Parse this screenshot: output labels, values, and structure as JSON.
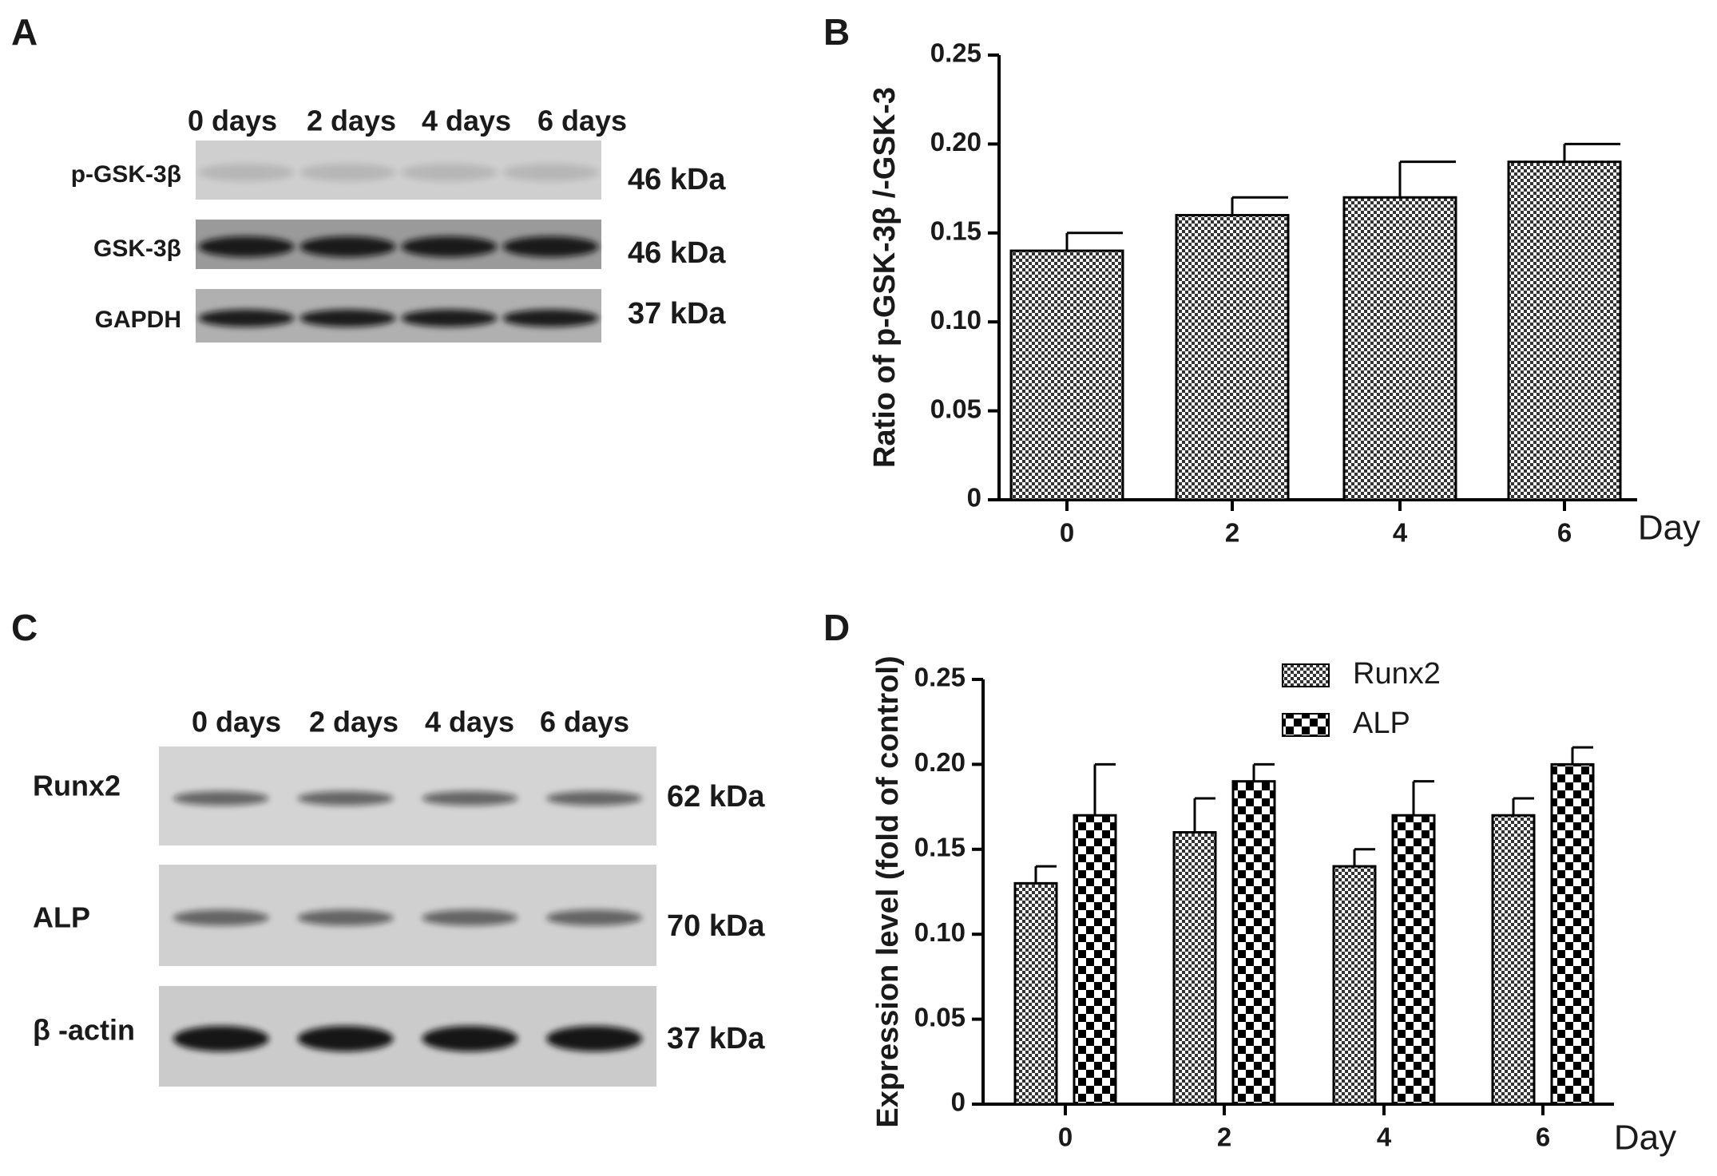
{
  "panel_labels": [
    "A",
    "B",
    "C",
    "D"
  ],
  "blots": [
    {
      "lanes": [
        "0 days",
        "2 days",
        "4 days",
        "6 days"
      ],
      "rows": [
        {
          "label": "p-GSK-3β",
          "size": "46 kDa"
        },
        {
          "label": "GSK-3β",
          "size": "46 kDa"
        },
        {
          "label": "GAPDH",
          "size": "37 kDa"
        }
      ]
    },
    {
      "lanes": [
        "0 days",
        "2 days",
        "4 days",
        "6 days"
      ],
      "rows": [
        {
          "label": "Runx2",
          "size": "62 kDa"
        },
        {
          "label": "ALP",
          "size": "70 kDa"
        },
        {
          "label": "β -actin",
          "size": "37 kDa"
        }
      ]
    }
  ],
  "chart_data": [
    {
      "type": "bar",
      "y_label": "Ratio of p-GSK-3β /-GSK-3",
      "x_label": "Day",
      "categories": [
        "0",
        "2",
        "4",
        "6"
      ],
      "series": [
        {
          "values": [
            0.14,
            0.16,
            0.17,
            0.19
          ],
          "errors": [
            0.01,
            0.01,
            0.02,
            0.01
          ],
          "pattern": "fine"
        }
      ],
      "ylim": [
        0,
        0.25
      ],
      "yticks": [
        0,
        0.05,
        {
          "value": 0.1,
          "label": "0.10"
        },
        0.15,
        {
          "value": 0.2,
          "label": "0.20"
        },
        0.25
      ]
    },
    {
      "type": "bar",
      "y_label": "Expression level (fold of control)",
      "x_label": "Day",
      "categories": [
        "0",
        "2",
        "4",
        "6"
      ],
      "series": [
        {
          "name": "Runx2",
          "values": [
            0.13,
            0.16,
            0.14,
            0.17
          ],
          "errors": [
            0.01,
            0.02,
            0.01,
            0.01
          ],
          "pattern": "fine"
        },
        {
          "name": "ALP",
          "values": [
            0.17,
            0.19,
            0.17,
            0.2
          ],
          "errors": [
            0.03,
            0.01,
            0.02,
            0.01
          ],
          "pattern": "coarse"
        }
      ],
      "ylim": [
        0,
        0.25
      ],
      "yticks": [
        0,
        0.05,
        {
          "value": 0.1,
          "label": "0.10"
        },
        0.15,
        {
          "value": 0.2,
          "label": "0.20"
        },
        0.25
      ],
      "legend": "top"
    }
  ]
}
